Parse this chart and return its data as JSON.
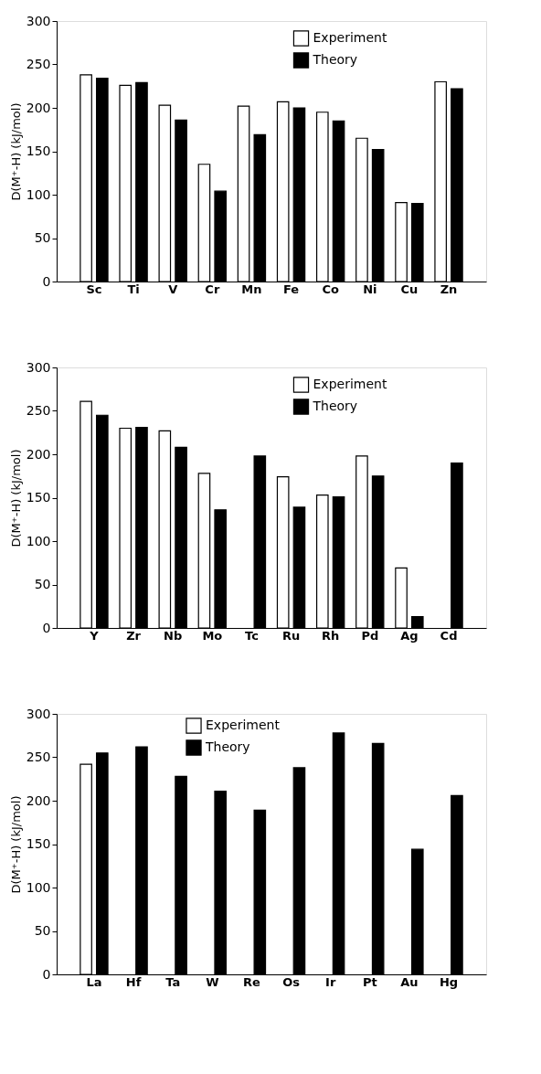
{
  "chart_data": [
    {
      "type": "bar",
      "ylabel": "D(M⁺-H)   (kJ/mol)",
      "categories": [
        "Sc",
        "Ti",
        "V",
        "Cr",
        "Mn",
        "Fe",
        "Co",
        "Ni",
        "Cu",
        "Zn"
      ],
      "ylim": [
        0,
        300
      ],
      "yticks": [
        0,
        50,
        100,
        150,
        200,
        250,
        300
      ],
      "legend": "top right",
      "grid": false,
      "series": [
        {
          "name": "Experiment",
          "color": "#ffffff",
          "values": [
            238,
            226,
            203,
            135,
            202,
            207,
            195,
            165,
            91,
            230
          ]
        },
        {
          "name": "Theory",
          "color": "#000000",
          "values": [
            234,
            229,
            186,
            104,
            169,
            200,
            185,
            152,
            90,
            222
          ]
        }
      ]
    },
    {
      "type": "bar",
      "ylabel": "D(M⁺-H)   (kJ/mol)",
      "categories": [
        "Y",
        "Zr",
        "Nb",
        "Mo",
        "Tc",
        "Ru",
        "Rh",
        "Pd",
        "Ag",
        "Cd"
      ],
      "ylim": [
        0,
        300
      ],
      "yticks": [
        0,
        50,
        100,
        150,
        200,
        250,
        300
      ],
      "legend": "top right",
      "grid": false,
      "series": [
        {
          "name": "Experiment",
          "color": "#ffffff",
          "values": [
            261,
            230,
            227,
            178,
            null,
            174,
            153,
            198,
            69,
            null
          ]
        },
        {
          "name": "Theory",
          "color": "#000000",
          "values": [
            245,
            231,
            208,
            136,
            198,
            139,
            151,
            175,
            13,
            190
          ]
        }
      ]
    },
    {
      "type": "bar",
      "ylabel": "D(M⁺-H)   (kJ/mol)",
      "categories": [
        "La",
        "Hf",
        "Ta",
        "W",
        "Re",
        "Os",
        "Ir",
        "Pt",
        "Au",
        "Hg"
      ],
      "ylim": [
        0,
        300
      ],
      "yticks": [
        0,
        50,
        100,
        150,
        200,
        250,
        300
      ],
      "legend": "top",
      "grid": false,
      "series": [
        {
          "name": "Experiment",
          "color": "#ffffff",
          "values": [
            242,
            null,
            null,
            null,
            null,
            null,
            null,
            null,
            null,
            null
          ]
        },
        {
          "name": "Theory",
          "color": "#000000",
          "values": [
            255,
            262,
            228,
            211,
            189,
            238,
            278,
            266,
            144,
            206
          ]
        }
      ]
    }
  ]
}
